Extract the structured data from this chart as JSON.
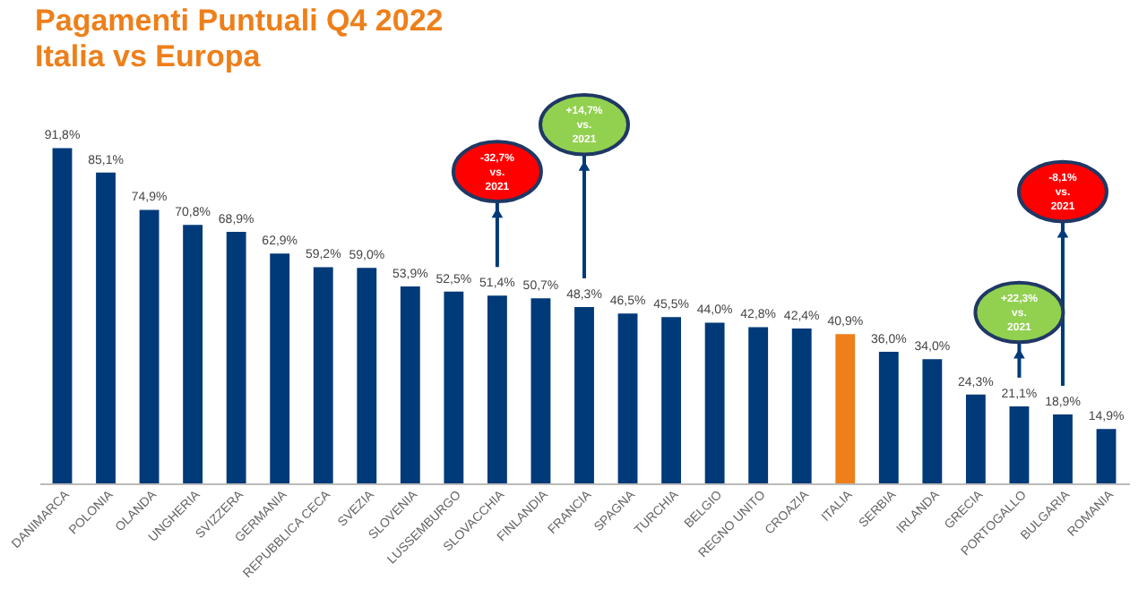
{
  "chart_data": {
    "type": "bar",
    "title": "Pagamenti Puntuali Q4 2022",
    "subtitle": "Italia vs Europa",
    "categories": [
      "DANIMARCA",
      "POLONIA",
      "OLANDA",
      "UNGHERIA",
      "SVIZZERA",
      "GERMANIA",
      "REPUBBLICA CECA",
      "SVEZIA",
      "SLOVENIA",
      "LUSSEMBURGO",
      "SLOVACCHIA",
      "FINLANDIA",
      "FRANCIA",
      "SPAGNA",
      "TURCHIA",
      "BELGIO",
      "REGNO UNITO",
      "CROAZIA",
      "ITALIA",
      "SERBIA",
      "IRLANDA",
      "GRECIA",
      "PORTOGALLO",
      "BULGARIA",
      "ROMANIA"
    ],
    "values": [
      91.8,
      85.1,
      74.9,
      70.8,
      68.9,
      62.9,
      59.2,
      59.0,
      53.9,
      52.5,
      51.4,
      50.7,
      48.3,
      46.5,
      45.5,
      44.0,
      42.8,
      42.4,
      40.9,
      36.0,
      34.0,
      24.3,
      21.1,
      18.9,
      14.9
    ],
    "value_labels": [
      "91,8%",
      "85,1%",
      "74,9%",
      "70,8%",
      "68,9%",
      "62,9%",
      "59,2%",
      "59,0%",
      "53,9%",
      "52,5%",
      "51,4%",
      "50,7%",
      "48,3%",
      "46,5%",
      "45,5%",
      "44,0%",
      "42,8%",
      "42,4%",
      "40,9%",
      "36,0%",
      "34,0%",
      "24,3%",
      "21,1%",
      "18,9%",
      "14,9%"
    ],
    "colors": [
      "#003a78",
      "#003a78",
      "#003a78",
      "#003a78",
      "#003a78",
      "#003a78",
      "#003a78",
      "#003a78",
      "#003a78",
      "#003a78",
      "#003a78",
      "#003a78",
      "#003a78",
      "#003a78",
      "#003a78",
      "#003a78",
      "#003a78",
      "#003a78",
      "#ee7f1a",
      "#003a78",
      "#003a78",
      "#003a78",
      "#003a78",
      "#003a78",
      "#003a78"
    ],
    "annotations": [
      "-32,7% vs. 2021",
      "+14,7% vs. 2021",
      "+22,3% vs. 2021",
      "-8,1% vs. 2021"
    ],
    "grid": false
  }
}
